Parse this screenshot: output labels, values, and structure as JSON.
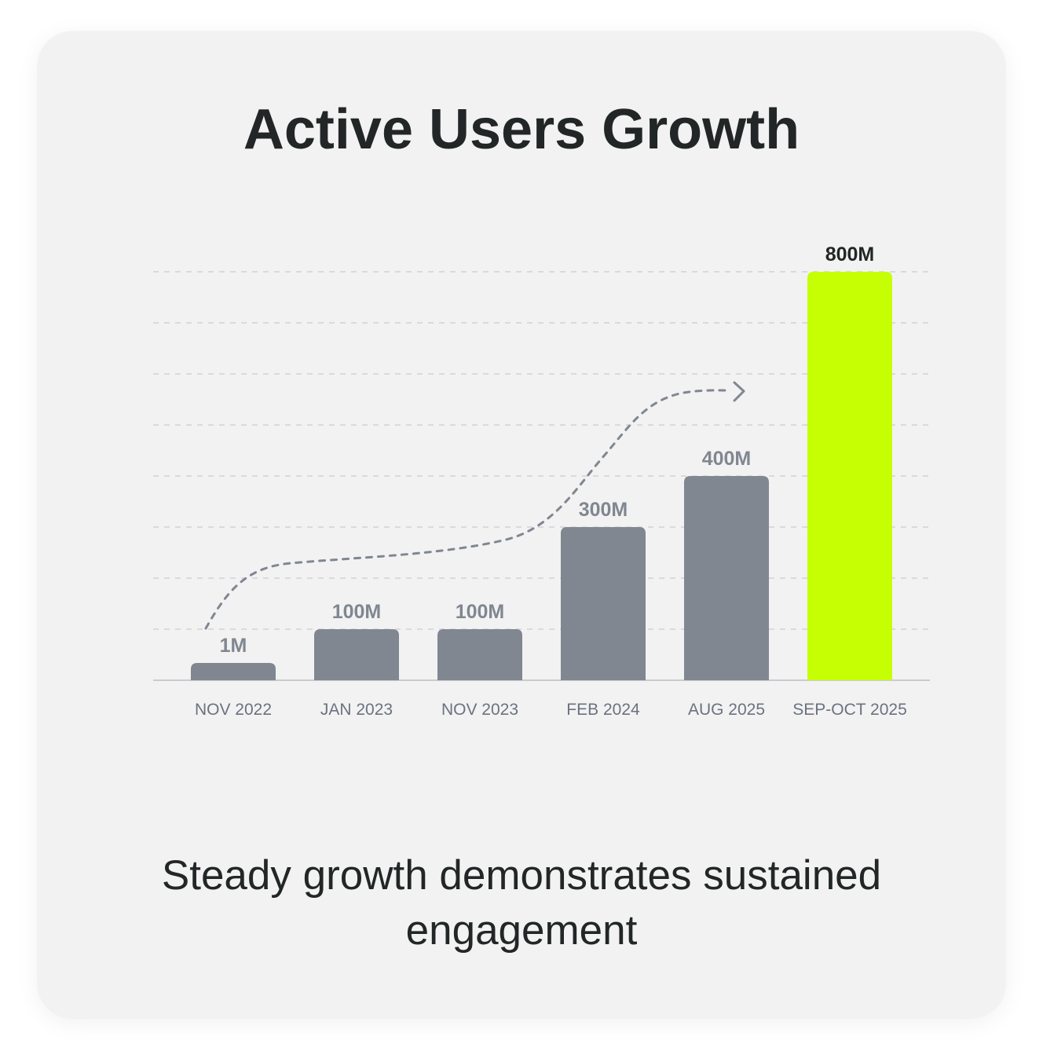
{
  "caption": "Steady growth demonstrates sustained engagement",
  "colors": {
    "bar": "#808791",
    "highlight": "#c6fe04",
    "value_label": "#808791",
    "highlight_label": "#222626",
    "tick_label": "#6b7280",
    "grid": "#cfd1d4",
    "axis": "#c9cbce",
    "trend_arrow": "#808791"
  },
  "chart_data": {
    "type": "bar",
    "title": "Active Users Growth",
    "xlabel": "",
    "ylabel": "",
    "categories": [
      "NOV 2022",
      "JAN 2023",
      "NOV 2023",
      "FEB 2024",
      "AUG 2025",
      "SEP-OCT 2025"
    ],
    "values": [
      1,
      100,
      100,
      300,
      400,
      800
    ],
    "value_labels": [
      "1M",
      "100M",
      "100M",
      "300M",
      "400M",
      "800M"
    ],
    "unit": "M",
    "highlight_index": 5,
    "ylim": [
      0,
      800
    ],
    "grid": true,
    "grid_step": 100,
    "annotation": "dashed trend arrow rising toward the last bar",
    "legend": "none"
  }
}
